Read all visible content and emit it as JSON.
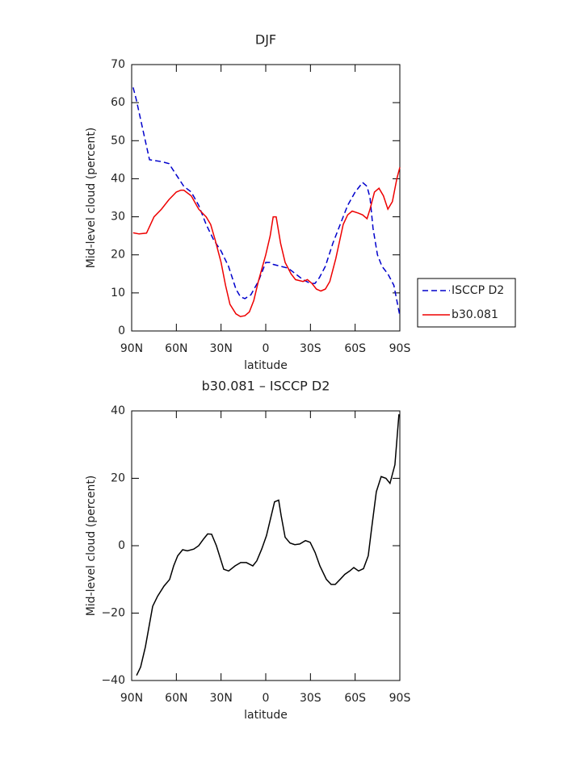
{
  "chart_data": [
    {
      "type": "line",
      "title": "DJF",
      "xlabel": "latitude",
      "ylabel": "Mid-level cloud (percent)",
      "xlim": [
        90,
        -90
      ],
      "xticks": [
        {
          "value": 90,
          "label": "90N"
        },
        {
          "value": 60,
          "label": "60N"
        },
        {
          "value": 30,
          "label": "30N"
        },
        0,
        {
          "value": -30,
          "label": "30S"
        },
        {
          "value": -60,
          "label": "60S"
        },
        {
          "value": -90,
          "label": "90S"
        }
      ],
      "ylim": [
        0,
        70
      ],
      "yticks": [
        0,
        10,
        20,
        30,
        40,
        50,
        60,
        70
      ],
      "legend": "outside right",
      "series": [
        {
          "name": "ISCCP D2",
          "color": "#0000cc",
          "dash": true,
          "x": [
            89,
            87,
            82,
            78,
            70,
            65,
            60,
            55,
            50,
            45,
            40,
            35,
            30,
            25,
            20,
            17,
            14,
            10,
            5,
            0,
            -3,
            -5,
            -10,
            -15,
            -20,
            -25,
            -30,
            -33,
            -36,
            -40,
            -45,
            -50,
            -55,
            -60,
            -65,
            -68,
            -70,
            -72,
            -75,
            -78,
            -82,
            -86,
            -88,
            -90
          ],
          "values": [
            64,
            61,
            52,
            45,
            44.5,
            44,
            41,
            38,
            36.5,
            33,
            28,
            24,
            21,
            17,
            11,
            9,
            8.5,
            9.5,
            13,
            18,
            18,
            17.5,
            17,
            16.5,
            15,
            13.5,
            12.5,
            12.5,
            14,
            17,
            23,
            28,
            33,
            36.5,
            39,
            38,
            35,
            27,
            20,
            17,
            15,
            12,
            8,
            4
          ]
        },
        {
          "name": "b30.081",
          "color": "#ee0000",
          "dash": false,
          "x": [
            89,
            85,
            80,
            75,
            70,
            65,
            60,
            57,
            55,
            50,
            45,
            40,
            37,
            34,
            30,
            27,
            24,
            20,
            17,
            14,
            11,
            8,
            5,
            0,
            -3,
            -5,
            -7,
            -10,
            -13,
            -17,
            -20,
            -25,
            -28,
            -31,
            -34,
            -37,
            -40,
            -43,
            -47,
            -52,
            -55,
            -58,
            -62,
            -65,
            -68,
            -70,
            -73,
            -76,
            -79,
            -82,
            -85,
            -88,
            -90
          ],
          "values": [
            25.8,
            25.5,
            25.7,
            30,
            32,
            34.5,
            36.5,
            37,
            37,
            35.5,
            32,
            30,
            28,
            24,
            18,
            12,
            7,
            4.5,
            3.8,
            4,
            5,
            8,
            13,
            20,
            25,
            30,
            30,
            23,
            18,
            15,
            13.5,
            13,
            13.5,
            12.5,
            11,
            10.5,
            11,
            13,
            19,
            28,
            30.5,
            31.5,
            31,
            30.5,
            29.5,
            32,
            36.5,
            37.5,
            35.5,
            32,
            34,
            40,
            43
          ]
        }
      ]
    },
    {
      "type": "line",
      "title": "b30.081 – ISCCP D2",
      "xlabel": "latitude",
      "ylabel": "Mid-level cloud (percent)",
      "xlim": [
        90,
        -90
      ],
      "xticks": [
        {
          "value": 90,
          "label": "90N"
        },
        {
          "value": 60,
          "label": "60N"
        },
        {
          "value": 30,
          "label": "30N"
        },
        0,
        {
          "value": -30,
          "label": "30S"
        },
        {
          "value": -60,
          "label": "60S"
        },
        {
          "value": -90,
          "label": "90S"
        }
      ],
      "ylim": [
        -40,
        40
      ],
      "yticks": [
        {
          "value": -40,
          "label": "−40"
        },
        {
          "value": -20,
          "label": "−20"
        },
        0,
        20,
        40
      ],
      "series": [
        {
          "color": "#000000",
          "dash": false,
          "x": [
            86.7,
            84,
            80.8,
            75.9,
            72.6,
            68.3,
            64.5,
            61.8,
            59.1,
            55.8,
            52.6,
            48.3,
            45,
            41.7,
            39,
            36.3,
            33.1,
            28.2,
            24.9,
            20.6,
            16.8,
            13,
            8.7,
            6,
            2.7,
            -0.5,
            -3.2,
            -5.9,
            -8.7,
            -10.3,
            -13,
            -16.3,
            -19.5,
            -22.8,
            -26.6,
            -29.8,
            -33.1,
            -36.3,
            -40.7,
            -43.9,
            -46.6,
            -49.9,
            -53.1,
            -56.4,
            -59.1,
            -62.3,
            -65.6,
            -68.8,
            -71,
            -74.2,
            -77.5,
            -80.7,
            -83.4,
            -86.7,
            -89.4
          ],
          "values": [
            -38.5,
            -36,
            -30,
            -18,
            -15,
            -12,
            -10,
            -6,
            -3,
            -1.2,
            -1.5,
            -1,
            0,
            2,
            3.5,
            3.4,
            0,
            -7,
            -7.5,
            -6,
            -5,
            -5,
            -6,
            -4.5,
            -1,
            3,
            8,
            13,
            13.5,
            9,
            2.5,
            0.8,
            0.3,
            0.5,
            1.5,
            1,
            -2,
            -6,
            -10,
            -11.5,
            -11.5,
            -10,
            -8.5,
            -7.5,
            -6.5,
            -7.5,
            -6.8,
            -3,
            5,
            16,
            20.5,
            20,
            18.5,
            24,
            39
          ]
        }
      ]
    }
  ]
}
